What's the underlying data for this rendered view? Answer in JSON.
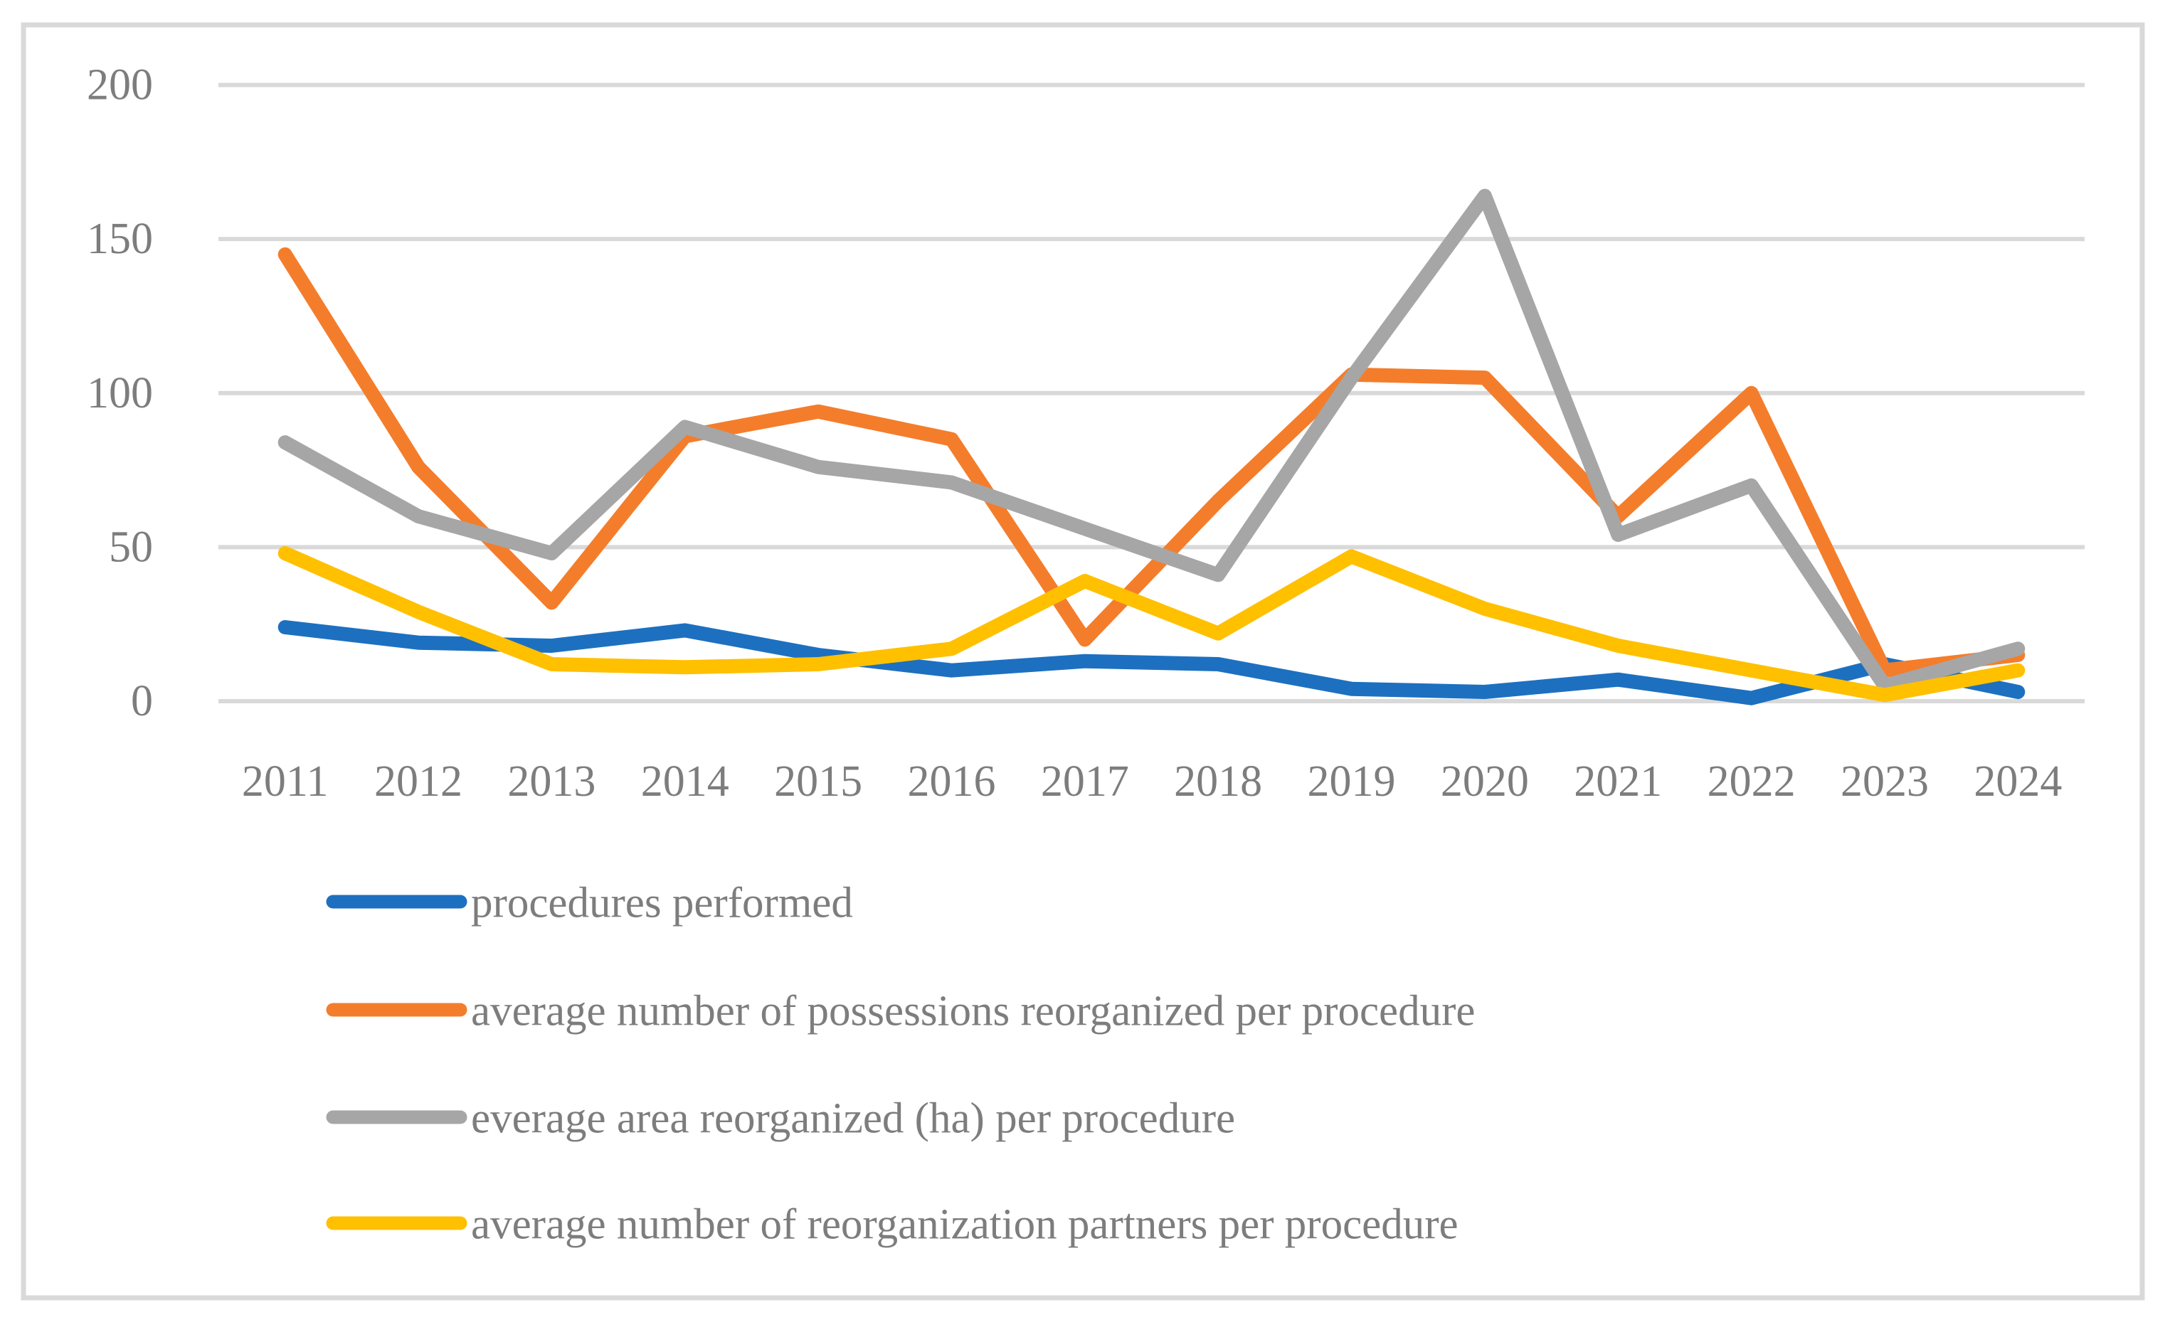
{
  "chart_data": {
    "type": "line",
    "title": "",
    "xlabel": "",
    "ylabel": "",
    "categories": [
      "2011",
      "2012",
      "2013",
      "2014",
      "2015",
      "2016",
      "2017",
      "2018",
      "2019",
      "2020",
      "2021",
      "2022",
      "2023",
      "2024"
    ],
    "series": [
      {
        "name": "procedures performed",
        "color": "#1d70c0",
        "values": [
          24,
          19,
          18,
          23,
          15,
          10,
          13,
          12,
          4,
          3,
          7,
          1,
          12,
          3
        ]
      },
      {
        "name": "average number of possessions reorganized per procedure",
        "color": "#f47d2b",
        "values": [
          145,
          76,
          32,
          86,
          94,
          85,
          20,
          65,
          106,
          105,
          60,
          100,
          10,
          15
        ]
      },
      {
        "name": "everage area reorganized (ha) per procedure",
        "color": "#a6a6a6",
        "values": [
          84,
          60,
          48,
          89,
          76,
          71,
          56,
          41,
          105,
          164,
          54,
          70,
          5,
          17
        ]
      },
      {
        "name": "average number of reorganization partners per procedure",
        "color": "#ffc000",
        "values": [
          48,
          29,
          12,
          11,
          12,
          17,
          39,
          22,
          47,
          30,
          18,
          10,
          2,
          10
        ]
      }
    ],
    "ylim": [
      0,
      200
    ],
    "yticks": [
      0,
      50,
      100,
      150,
      200
    ],
    "grid": true,
    "legend_position": "bottom-left",
    "gridline_color": "#d9d9d9",
    "border_color": "#d9d9d9",
    "text_color": "#7d7d7d",
    "background_color": "#ffffff"
  }
}
